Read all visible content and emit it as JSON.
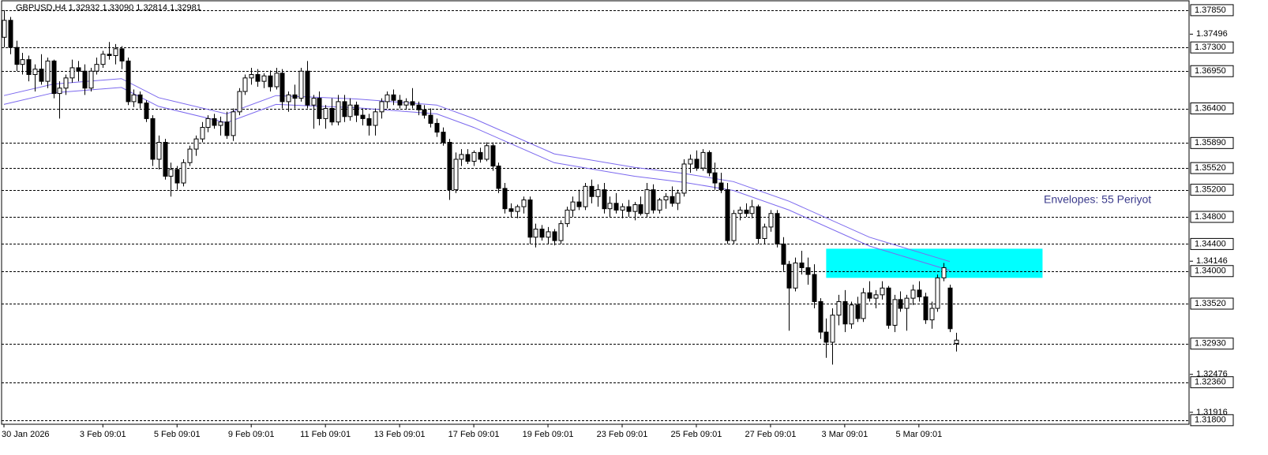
{
  "chart_data": {
    "type": "candlestick",
    "title": "GBPUSD,H4  1.32932 1.33090 1.32814 1.32981",
    "annotation": "Envelopes: 55 Periyot",
    "ylim": [
      1.3174,
      1.38
    ],
    "yticks": [
      1.37496,
      1.34146,
      1.32476,
      1.31916
    ],
    "levels": [
      {
        "value": 1.3785,
        "label": "1.37850"
      },
      {
        "value": 1.373,
        "label": "1.37300"
      },
      {
        "value": 1.3695,
        "label": "1.36950"
      },
      {
        "value": 1.364,
        "label": "1.36400"
      },
      {
        "value": 1.3589,
        "label": "1.35890"
      },
      {
        "value": 1.3552,
        "label": "1.35520"
      },
      {
        "value": 1.352,
        "label": "1.35200"
      },
      {
        "value": 1.348,
        "label": "1.34800"
      },
      {
        "value": 1.344,
        "label": "1.34400"
      },
      {
        "value": 1.34,
        "label": "1.34000"
      },
      {
        "value": 1.3352,
        "label": "1.33520"
      },
      {
        "value": 1.3293,
        "label": "1.32930"
      },
      {
        "value": 1.3236,
        "label": "1.32360"
      },
      {
        "value": 1.318,
        "label": "1.31800"
      }
    ],
    "zone": {
      "top": 1.3433,
      "bottom": 1.339,
      "start": 133,
      "end": 168,
      "color": "#00ffff"
    },
    "categories": [
      "30 Jan 2026",
      null,
      null,
      null,
      null,
      null,
      null,
      null,
      null,
      null,
      null,
      null,
      null,
      null,
      null,
      null,
      "3 Feb 09:01",
      null,
      null,
      null,
      null,
      null,
      null,
      null,
      null,
      null,
      null,
      null,
      "5 Feb 09:01",
      null,
      null,
      null,
      null,
      null,
      null,
      null,
      null,
      null,
      null,
      null,
      "9 Feb 09:01",
      null,
      null,
      null,
      null,
      null,
      null,
      null,
      null,
      null,
      null,
      null,
      "11 Feb 09:01",
      null,
      null,
      null,
      null,
      null,
      null,
      null,
      null,
      null,
      null,
      null,
      "13 Feb 09:01",
      null,
      null,
      null,
      null,
      null,
      null,
      null,
      null,
      null,
      null,
      null,
      "17 Feb 09:01",
      null,
      null,
      null,
      null,
      null,
      null,
      null,
      null,
      null,
      null,
      null,
      "19 Feb 09:01",
      null,
      null,
      null,
      null,
      null,
      null,
      null,
      null,
      null,
      null,
      null,
      "23 Feb 09:01",
      null,
      null,
      null,
      null,
      null,
      null,
      null,
      null,
      null,
      null,
      null,
      "25 Feb 09:01",
      null,
      null,
      null,
      null,
      null,
      null,
      null,
      null,
      null,
      null,
      null,
      "27 Feb 09:01",
      null,
      null,
      null,
      null,
      null,
      null,
      null,
      null,
      null,
      null,
      null,
      "3 Mar 09:01",
      null,
      null,
      null,
      null,
      null,
      null,
      null,
      null,
      null,
      null,
      null,
      "5 Mar 09:01",
      null,
      null,
      null,
      null,
      null,
      null
    ],
    "candles": [
      [
        1.3745,
        1.3785,
        1.373,
        1.377
      ],
      [
        1.377,
        1.3775,
        1.372,
        1.373
      ],
      [
        1.373,
        1.374,
        1.3695,
        1.3705
      ],
      [
        1.3705,
        1.3722,
        1.369,
        1.3712
      ],
      [
        1.3712,
        1.3718,
        1.368,
        1.369
      ],
      [
        1.369,
        1.3705,
        1.3665,
        1.3698
      ],
      [
        1.3698,
        1.372,
        1.3675,
        1.368
      ],
      [
        1.368,
        1.3715,
        1.367,
        1.371
      ],
      [
        1.371,
        1.3712,
        1.3655,
        1.3662
      ],
      [
        1.3662,
        1.368,
        1.3625,
        1.367
      ],
      [
        1.367,
        1.369,
        1.366,
        1.3685
      ],
      [
        1.3685,
        1.3712,
        1.3678,
        1.37
      ],
      [
        1.37,
        1.371,
        1.368,
        1.3695
      ],
      [
        1.3695,
        1.3705,
        1.366,
        1.367
      ],
      [
        1.367,
        1.37,
        1.3665,
        1.3695
      ],
      [
        1.3695,
        1.3715,
        1.369,
        1.3705
      ],
      [
        1.3705,
        1.3725,
        1.37,
        1.372
      ],
      [
        1.372,
        1.3738,
        1.3712,
        1.3718
      ],
      [
        1.3718,
        1.3735,
        1.3705,
        1.3728
      ],
      [
        1.3728,
        1.3732,
        1.3698,
        1.371
      ],
      [
        1.371,
        1.3715,
        1.3645,
        1.365
      ],
      [
        1.365,
        1.3668,
        1.3642,
        1.366
      ],
      [
        1.366,
        1.3665,
        1.364,
        1.3648
      ],
      [
        1.3648,
        1.3652,
        1.362,
        1.3625
      ],
      [
        1.3625,
        1.363,
        1.3555,
        1.3565
      ],
      [
        1.3565,
        1.36,
        1.355,
        1.359
      ],
      [
        1.359,
        1.3595,
        1.3535,
        1.354
      ],
      [
        1.354,
        1.356,
        1.351,
        1.355
      ],
      [
        1.355,
        1.3555,
        1.352,
        1.353
      ],
      [
        1.353,
        1.3565,
        1.3525,
        1.356
      ],
      [
        1.356,
        1.3585,
        1.3555,
        1.358
      ],
      [
        1.358,
        1.36,
        1.357,
        1.3595
      ],
      [
        1.3595,
        1.362,
        1.359,
        1.3612
      ],
      [
        1.3612,
        1.363,
        1.3605,
        1.3625
      ],
      [
        1.3625,
        1.3632,
        1.361,
        1.3615
      ],
      [
        1.3615,
        1.3628,
        1.36,
        1.362
      ],
      [
        1.362,
        1.3635,
        1.3595,
        1.36
      ],
      [
        1.36,
        1.364,
        1.3592,
        1.3635
      ],
      [
        1.3635,
        1.367,
        1.363,
        1.3665
      ],
      [
        1.3665,
        1.369,
        1.366,
        1.3685
      ],
      [
        1.3685,
        1.37,
        1.3675,
        1.369
      ],
      [
        1.369,
        1.3698,
        1.3672,
        1.368
      ],
      [
        1.368,
        1.3692,
        1.367,
        1.3688
      ],
      [
        1.3688,
        1.3696,
        1.3665,
        1.3672
      ],
      [
        1.3672,
        1.37,
        1.3668,
        1.3692
      ],
      [
        1.3692,
        1.3698,
        1.364,
        1.365
      ],
      [
        1.365,
        1.3665,
        1.3635,
        1.366
      ],
      [
        1.366,
        1.3675,
        1.364,
        1.3655
      ],
      [
        1.3655,
        1.37,
        1.365,
        1.3695
      ],
      [
        1.3695,
        1.371,
        1.364,
        1.3645
      ],
      [
        1.3645,
        1.366,
        1.361,
        1.3655
      ],
      [
        1.3655,
        1.3665,
        1.3615,
        1.3625
      ],
      [
        1.3625,
        1.3645,
        1.361,
        1.364
      ],
      [
        1.364,
        1.3655,
        1.3615,
        1.362
      ],
      [
        1.362,
        1.366,
        1.3615,
        1.365
      ],
      [
        1.365,
        1.366,
        1.362,
        1.3628
      ],
      [
        1.3628,
        1.3655,
        1.3622,
        1.3645
      ],
      [
        1.3645,
        1.365,
        1.362,
        1.363
      ],
      [
        1.363,
        1.364,
        1.3615,
        1.3625
      ],
      [
        1.3625,
        1.3632,
        1.36,
        1.3615
      ],
      [
        1.3615,
        1.364,
        1.36,
        1.3635
      ],
      [
        1.3635,
        1.3655,
        1.3625,
        1.365
      ],
      [
        1.365,
        1.3665,
        1.364,
        1.366
      ],
      [
        1.366,
        1.3668,
        1.3645,
        1.3652
      ],
      [
        1.3652,
        1.366,
        1.364,
        1.3645
      ],
      [
        1.3645,
        1.3655,
        1.3638,
        1.365
      ],
      [
        1.365,
        1.367,
        1.364,
        1.3645
      ],
      [
        1.3645,
        1.365,
        1.363,
        1.3638
      ],
      [
        1.3638,
        1.3645,
        1.3625,
        1.363
      ],
      [
        1.363,
        1.364,
        1.3612,
        1.3618
      ],
      [
        1.3618,
        1.3625,
        1.3598,
        1.3605
      ],
      [
        1.3605,
        1.3612,
        1.3585,
        1.359
      ],
      [
        1.359,
        1.3595,
        1.3505,
        1.352
      ],
      [
        1.352,
        1.3575,
        1.3515,
        1.3565
      ],
      [
        1.3565,
        1.358,
        1.3555,
        1.3572
      ],
      [
        1.3572,
        1.358,
        1.3558,
        1.3562
      ],
      [
        1.3562,
        1.3578,
        1.3555,
        1.3575
      ],
      [
        1.3575,
        1.3582,
        1.356,
        1.3565
      ],
      [
        1.3565,
        1.359,
        1.3562,
        1.3585
      ],
      [
        1.3585,
        1.359,
        1.3548,
        1.3555
      ],
      [
        1.3555,
        1.356,
        1.3515,
        1.3522
      ],
      [
        1.3522,
        1.353,
        1.3485,
        1.3492
      ],
      [
        1.3492,
        1.35,
        1.348,
        1.3488
      ],
      [
        1.3488,
        1.3498,
        1.3478,
        1.3495
      ],
      [
        1.3495,
        1.351,
        1.3485,
        1.3505
      ],
      [
        1.3505,
        1.351,
        1.344,
        1.345
      ],
      [
        1.345,
        1.347,
        1.3435,
        1.3462
      ],
      [
        1.3462,
        1.3468,
        1.3445,
        1.345
      ],
      [
        1.345,
        1.3465,
        1.344,
        1.3458
      ],
      [
        1.3458,
        1.3462,
        1.3438,
        1.3445
      ],
      [
        1.3445,
        1.3475,
        1.344,
        1.347
      ],
      [
        1.347,
        1.3495,
        1.3465,
        1.349
      ],
      [
        1.349,
        1.351,
        1.348,
        1.3502
      ],
      [
        1.3502,
        1.352,
        1.349,
        1.3495
      ],
      [
        1.3495,
        1.353,
        1.349,
        1.3525
      ],
      [
        1.3525,
        1.3535,
        1.35,
        1.351
      ],
      [
        1.351,
        1.3528,
        1.3495,
        1.352
      ],
      [
        1.352,
        1.353,
        1.3485,
        1.3492
      ],
      [
        1.3492,
        1.351,
        1.348,
        1.35
      ],
      [
        1.35,
        1.3515,
        1.3485,
        1.349
      ],
      [
        1.349,
        1.35,
        1.3478,
        1.3495
      ],
      [
        1.3495,
        1.3505,
        1.348,
        1.3488
      ],
      [
        1.3488,
        1.3502,
        1.3475,
        1.3498
      ],
      [
        1.3498,
        1.351,
        1.3482,
        1.3485
      ],
      [
        1.3485,
        1.353,
        1.348,
        1.352
      ],
      [
        1.352,
        1.3528,
        1.3485,
        1.349
      ],
      [
        1.349,
        1.3508,
        1.3485,
        1.3505
      ],
      [
        1.3505,
        1.3515,
        1.3492,
        1.351
      ],
      [
        1.351,
        1.3525,
        1.3495,
        1.35
      ],
      [
        1.35,
        1.352,
        1.349,
        1.3515
      ],
      [
        1.3515,
        1.3565,
        1.351,
        1.3558
      ],
      [
        1.3558,
        1.3572,
        1.3545,
        1.3565
      ],
      [
        1.3565,
        1.3578,
        1.3548,
        1.3552
      ],
      [
        1.3552,
        1.358,
        1.3548,
        1.3575
      ],
      [
        1.3575,
        1.3578,
        1.354,
        1.3545
      ],
      [
        1.3545,
        1.356,
        1.352,
        1.353
      ],
      [
        1.353,
        1.3545,
        1.3515,
        1.352
      ],
      [
        1.352,
        1.353,
        1.344,
        1.3445
      ],
      [
        1.3445,
        1.349,
        1.344,
        1.3485
      ],
      [
        1.3485,
        1.3495,
        1.3475,
        1.349
      ],
      [
        1.349,
        1.35,
        1.348,
        1.3485
      ],
      [
        1.3485,
        1.3505,
        1.3478,
        1.3495
      ],
      [
        1.3495,
        1.3498,
        1.344,
        1.3448
      ],
      [
        1.3448,
        1.347,
        1.344,
        1.3465
      ],
      [
        1.3465,
        1.349,
        1.3458,
        1.3485
      ],
      [
        1.3485,
        1.349,
        1.3435,
        1.344
      ],
      [
        1.344,
        1.345,
        1.34,
        1.341
      ],
      [
        1.341,
        1.3415,
        1.3312,
        1.3375
      ],
      [
        1.3375,
        1.342,
        1.337,
        1.3412
      ],
      [
        1.3412,
        1.343,
        1.3395,
        1.3405
      ],
      [
        1.3405,
        1.342,
        1.338,
        1.3395
      ],
      [
        1.3395,
        1.341,
        1.3345,
        1.3355
      ],
      [
        1.3355,
        1.336,
        1.33,
        1.331
      ],
      [
        1.331,
        1.333,
        1.3272,
        1.3295
      ],
      [
        1.3295,
        1.3345,
        1.3262,
        1.3335
      ],
      [
        1.3335,
        1.3365,
        1.332,
        1.3355
      ],
      [
        1.3355,
        1.3372,
        1.331,
        1.3322
      ],
      [
        1.3322,
        1.3355,
        1.3315,
        1.335
      ],
      [
        1.335,
        1.3362,
        1.3325,
        1.333
      ],
      [
        1.333,
        1.3375,
        1.3325,
        1.3368
      ],
      [
        1.3368,
        1.3385,
        1.3355,
        1.336
      ],
      [
        1.336,
        1.3372,
        1.3345,
        1.3365
      ],
      [
        1.3365,
        1.3385,
        1.3358,
        1.3375
      ],
      [
        1.3375,
        1.3378,
        1.3315,
        1.332
      ],
      [
        1.332,
        1.3365,
        1.331,
        1.3358
      ],
      [
        1.3358,
        1.337,
        1.334,
        1.3345
      ],
      [
        1.3345,
        1.3365,
        1.3312,
        1.336
      ],
      [
        1.336,
        1.338,
        1.335,
        1.3372
      ],
      [
        1.3372,
        1.3385,
        1.3355,
        1.3362
      ],
      [
        1.3362,
        1.3368,
        1.3322,
        1.3328
      ],
      [
        1.3328,
        1.3355,
        1.3315,
        1.3345
      ],
      [
        1.3345,
        1.3395,
        1.334,
        1.339
      ],
      [
        1.339,
        1.3412,
        1.3385,
        1.3405
      ],
      [
        1.3375,
        1.338,
        1.331,
        1.3315
      ],
      [
        1.32932,
        1.3309,
        1.32814,
        1.32981
      ]
    ],
    "envelopes": [
      {
        "color": "#7b68ee",
        "x": [
          0,
          8,
          19,
          25,
          36,
          44,
          57,
          70,
          76,
          89,
          102,
          110,
          118,
          127,
          140,
          153
        ],
        "values": [
          1.3659,
          1.3676,
          1.3684,
          1.3656,
          1.3632,
          1.3659,
          1.3654,
          1.3645,
          1.3625,
          1.3573,
          1.3553,
          1.3544,
          1.3532,
          1.3503,
          1.345,
          1.3414
        ]
      },
      {
        "color": "#7b68ee",
        "x": [
          0,
          8,
          19,
          25,
          36,
          44,
          57,
          70,
          76,
          89,
          102,
          110,
          118,
          127,
          140,
          153
        ],
        "values": [
          1.3646,
          1.3663,
          1.3671,
          1.3643,
          1.3619,
          1.3646,
          1.3641,
          1.3632,
          1.3612,
          1.356,
          1.354,
          1.3531,
          1.3519,
          1.349,
          1.3437,
          1.3401
        ]
      }
    ]
  }
}
